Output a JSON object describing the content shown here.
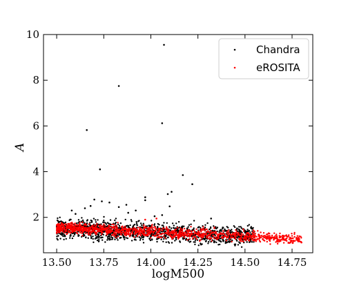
{
  "chart_data": {
    "type": "scatter",
    "title": "",
    "xlabel": "logM500",
    "ylabel": "A",
    "xlim": [
      13.43,
      14.86
    ],
    "ylim": [
      0.45,
      10.0
    ],
    "xticks": [
      13.5,
      13.75,
      14.0,
      14.25,
      14.5,
      14.75
    ],
    "xtick_labels": [
      "13.50",
      "13.75",
      "14.00",
      "14.25",
      "14.50",
      "14.75"
    ],
    "yticks": [
      2,
      4,
      6,
      8,
      10
    ],
    "ytick_labels": [
      "2",
      "4",
      "6",
      "8",
      "10"
    ],
    "grid": false,
    "legend_position": "top-right",
    "series": [
      {
        "name": "Chandra",
        "color": "#000000",
        "band": {
          "x_range": [
            13.5,
            14.55
          ],
          "y_center_at_start": 1.5,
          "y_center_at_end": 1.2,
          "spread": 0.7,
          "n": 1400
        },
        "outliers": [
          {
            "x": 14.07,
            "y": 9.55
          },
          {
            "x": 13.83,
            "y": 7.75
          },
          {
            "x": 13.66,
            "y": 5.82
          },
          {
            "x": 14.06,
            "y": 6.12
          },
          {
            "x": 13.73,
            "y": 4.1
          },
          {
            "x": 14.17,
            "y": 3.85
          },
          {
            "x": 14.22,
            "y": 3.45
          },
          {
            "x": 14.11,
            "y": 3.12
          },
          {
            "x": 14.09,
            "y": 3.02
          },
          {
            "x": 13.97,
            "y": 2.88
          },
          {
            "x": 13.97,
            "y": 2.75
          },
          {
            "x": 13.7,
            "y": 2.78
          },
          {
            "x": 13.78,
            "y": 2.65
          },
          {
            "x": 13.74,
            "y": 2.7
          },
          {
            "x": 13.68,
            "y": 2.5
          },
          {
            "x": 14.1,
            "y": 2.48
          },
          {
            "x": 13.87,
            "y": 2.55
          },
          {
            "x": 13.58,
            "y": 2.3
          },
          {
            "x": 13.83,
            "y": 2.45
          },
          {
            "x": 13.65,
            "y": 2.4
          },
          {
            "x": 13.88,
            "y": 2.2
          },
          {
            "x": 14.06,
            "y": 2.1
          },
          {
            "x": 13.92,
            "y": 2.3
          },
          {
            "x": 14.32,
            "y": 1.95
          },
          {
            "x": 13.6,
            "y": 2.15
          },
          {
            "x": 14.02,
            "y": 2.05
          }
        ]
      },
      {
        "name": "eROSITA",
        "color": "#ff0000",
        "band": {
          "x_range": [
            13.5,
            14.8
          ],
          "y_center_at_start": 1.55,
          "y_center_at_end": 1.05,
          "spread": 0.4,
          "n": 1300
        },
        "outliers": [
          {
            "x": 14.03,
            "y": 1.95
          },
          {
            "x": 13.97,
            "y": 1.9
          },
          {
            "x": 14.55,
            "y": 1.38
          },
          {
            "x": 14.7,
            "y": 1.2
          },
          {
            "x": 14.78,
            "y": 1.0
          },
          {
            "x": 14.8,
            "y": 0.9
          }
        ]
      }
    ]
  }
}
